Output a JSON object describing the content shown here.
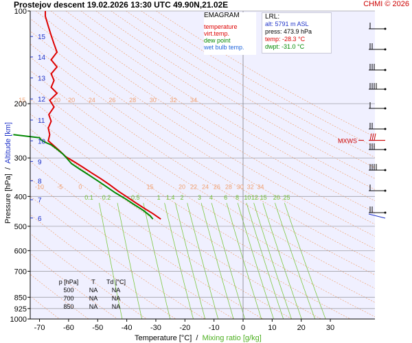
{
  "header": {
    "title": "Prostejov   descent   19.02.2026 13:30 UTC  49.90N,21.02E",
    "brand": "CHMI © 2026"
  },
  "legend": {
    "title": "EMAGRAM",
    "items": [
      {
        "label": "temperature",
        "color": "#dd0000"
      },
      {
        "label": "virt.temp.",
        "color": "#dd0000"
      },
      {
        "label": "dew point",
        "color": "#008800"
      },
      {
        "label": "wet bulb temp.",
        "color": "#1e64dc"
      }
    ]
  },
  "lrl": {
    "title": "LRL:",
    "alt": "alt: 5791 m ASL",
    "press": "press: 473.9 hPa",
    "temp": "temp: -28.3 °C",
    "dwpt": "dwpt: -31.0 °C"
  },
  "stability_table": {
    "headers": [
      "p [hPa]",
      "T",
      "Td [°C]"
    ],
    "rows": [
      [
        "500",
        "NA",
        "NA"
      ],
      [
        "700",
        "NA",
        "NA"
      ],
      [
        "850",
        "NA",
        "NA"
      ]
    ]
  },
  "chart_data": {
    "type": "line",
    "x_axis_label": "Temperature [°C]",
    "x_axis_label_sep": "  /  ",
    "x_axis_label2": "Mixing ratio [g/kg]",
    "y_axis_label": "Pressure [hPa]",
    "y_axis_label_sep": "  /  ",
    "y_axis_label2": "Altitude [km]",
    "xlim": [
      -80,
      40
    ],
    "ylim": [
      100,
      1000
    ],
    "y_scale": "log",
    "x_ticks": [
      -70,
      -60,
      -50,
      -40,
      -30,
      -20,
      -10,
      0,
      10,
      20,
      30
    ],
    "y_ticks": [
      100,
      200,
      300,
      400,
      500,
      600,
      700,
      850,
      925,
      1000
    ],
    "altitude_ticks": [
      {
        "km": "6",
        "p": 470
      },
      {
        "km": "7",
        "p": 410
      },
      {
        "km": "8",
        "p": 356
      },
      {
        "km": "9",
        "p": 308
      },
      {
        "km": "10",
        "p": 264
      },
      {
        "km": "11",
        "p": 226
      },
      {
        "km": "12",
        "p": 193
      },
      {
        "km": "13",
        "p": 165
      },
      {
        "km": "14",
        "p": 141
      },
      {
        "km": "15",
        "p": 121
      }
    ],
    "theta_labels": [
      {
        "text": "15",
        "x": -76,
        "p": 200
      },
      {
        "text": "20",
        "x": -64,
        "p": 200
      },
      {
        "text": "20",
        "x": -59,
        "p": 200
      },
      {
        "text": "24",
        "x": -52,
        "p": 200
      },
      {
        "text": "26",
        "x": -45,
        "p": 200
      },
      {
        "text": "28",
        "x": -38,
        "p": 200
      },
      {
        "text": "30",
        "x": -31,
        "p": 200
      },
      {
        "text": "32",
        "x": -24,
        "p": 200
      },
      {
        "text": "34",
        "x": -17,
        "p": 200
      },
      {
        "text": "-10",
        "x": -70,
        "p": 382
      },
      {
        "text": "-5",
        "x": -63,
        "p": 382
      },
      {
        "text": "0",
        "x": -56,
        "p": 382
      },
      {
        "text": "5",
        "x": -49,
        "p": 382
      },
      {
        "text": "15",
        "x": -32,
        "p": 382
      },
      {
        "text": "20",
        "x": -21,
        "p": 382
      },
      {
        "text": "22",
        "x": -17,
        "p": 382
      },
      {
        "text": "24",
        "x": -13,
        "p": 382
      },
      {
        "text": "26",
        "x": -9,
        "p": 382
      },
      {
        "text": "28",
        "x": -5,
        "p": 382
      },
      {
        "text": "30",
        "x": -1,
        "p": 382
      },
      {
        "text": "32",
        "x": 2.5,
        "p": 382
      },
      {
        "text": "34",
        "x": 6,
        "p": 382
      }
    ],
    "mixing_ratio_labels": [
      {
        "text": "0.1",
        "x": -53,
        "p": 414
      },
      {
        "text": "0.2",
        "x": -47,
        "p": 414
      },
      {
        "text": "0.5",
        "x": -37,
        "p": 414
      },
      {
        "text": "1",
        "x": -29,
        "p": 414
      },
      {
        "text": "1.4",
        "x": -25,
        "p": 414
      },
      {
        "text": "2",
        "x": -21,
        "p": 414
      },
      {
        "text": "3",
        "x": -15,
        "p": 414
      },
      {
        "text": "4",
        "x": -11,
        "p": 414
      },
      {
        "text": "6",
        "x": -6,
        "p": 414
      },
      {
        "text": "8",
        "x": -2,
        "p": 414
      },
      {
        "text": "10",
        "x": 1.5,
        "p": 414
      },
      {
        "text": "12",
        "x": 4,
        "p": 414
      },
      {
        "text": "15",
        "x": 7,
        "p": 414
      },
      {
        "text": "20",
        "x": 11.5,
        "p": 414
      },
      {
        "text": "25",
        "x": 15,
        "p": 414
      }
    ],
    "series": [
      {
        "name": "temperature",
        "color": "#dd0000",
        "points": [
          [
            -28.3,
            474
          ],
          [
            -31,
            455
          ],
          [
            -34,
            437
          ],
          [
            -37,
            419
          ],
          [
            -40,
            401
          ],
          [
            -43,
            384
          ],
          [
            -46,
            366
          ],
          [
            -49,
            350
          ],
          [
            -52,
            336
          ],
          [
            -55,
            322
          ],
          [
            -58,
            309
          ],
          [
            -61,
            297
          ],
          [
            -63,
            285
          ],
          [
            -65,
            274
          ],
          [
            -67,
            264
          ],
          [
            -66.5,
            252
          ],
          [
            -67,
            240
          ],
          [
            -66,
            228
          ],
          [
            -66.8,
            217
          ],
          [
            -65,
            205
          ],
          [
            -66.5,
            195
          ],
          [
            -64,
            185
          ],
          [
            -66,
            177
          ],
          [
            -65,
            168
          ],
          [
            -66,
            160
          ],
          [
            -64,
            152
          ],
          [
            -66,
            144
          ],
          [
            -64,
            136
          ],
          [
            -65,
            128
          ],
          [
            -66,
            120
          ],
          [
            -67,
            112
          ],
          [
            -68,
            104
          ],
          [
            -68,
            100
          ]
        ]
      },
      {
        "name": "dew point",
        "color": "#008800",
        "points": [
          [
            -31,
            474
          ],
          [
            -32,
            462
          ],
          [
            -34.5,
            443
          ],
          [
            -37.5,
            425
          ],
          [
            -40.5,
            407
          ],
          [
            -44,
            389
          ],
          [
            -47,
            372
          ],
          [
            -50,
            356
          ],
          [
            -53,
            341
          ],
          [
            -56,
            327
          ],
          [
            -59,
            313
          ],
          [
            -61,
            298
          ],
          [
            -62,
            291
          ],
          [
            -64,
            281
          ],
          [
            -66,
            272
          ],
          [
            -68,
            267
          ],
          [
            -69.5,
            262
          ],
          [
            -70,
            258
          ],
          [
            -79,
            252
          ]
        ]
      }
    ],
    "wind_labels": [
      "MXWS"
    ]
  }
}
